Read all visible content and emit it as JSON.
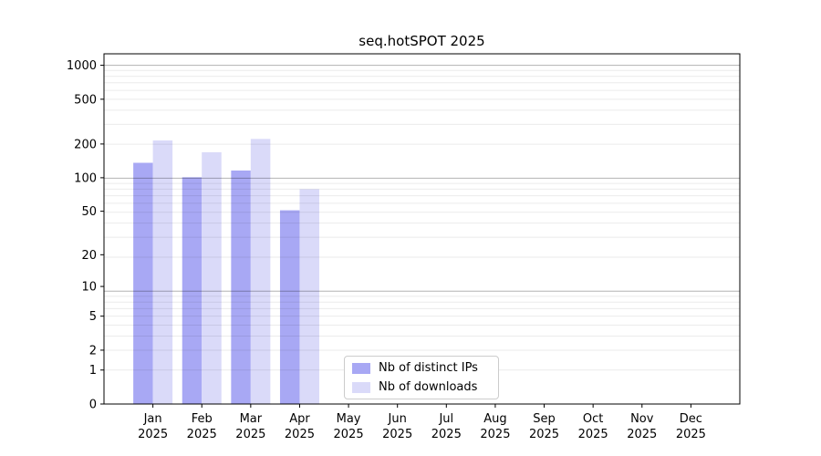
{
  "chart_data": {
    "type": "bar",
    "title": "seq.hotSPOT 2025",
    "year_label": "2025",
    "categories": [
      "Jan",
      "Feb",
      "Mar",
      "Apr",
      "May",
      "Jun",
      "Jul",
      "Aug",
      "Sep",
      "Oct",
      "Nov",
      "Dec"
    ],
    "series": [
      {
        "name": "Nb of distinct IPs",
        "color": "#a8a8f4",
        "values": [
          136,
          101,
          116,
          51,
          0,
          0,
          0,
          0,
          0,
          0,
          0,
          0
        ]
      },
      {
        "name": "Nb of downloads",
        "color": "#dadaf9",
        "values": [
          215,
          169,
          222,
          79,
          0,
          0,
          0,
          0,
          0,
          0,
          0,
          0
        ]
      }
    ],
    "yticks": [
      0,
      1,
      2,
      5,
      10,
      20,
      50,
      100,
      200,
      500,
      1000
    ],
    "ylim": [
      0,
      1264
    ],
    "yscale": "log10(value+1)",
    "grid": "horizontal, major decades darker + log minors",
    "legend_position": "inside bottom-center"
  }
}
